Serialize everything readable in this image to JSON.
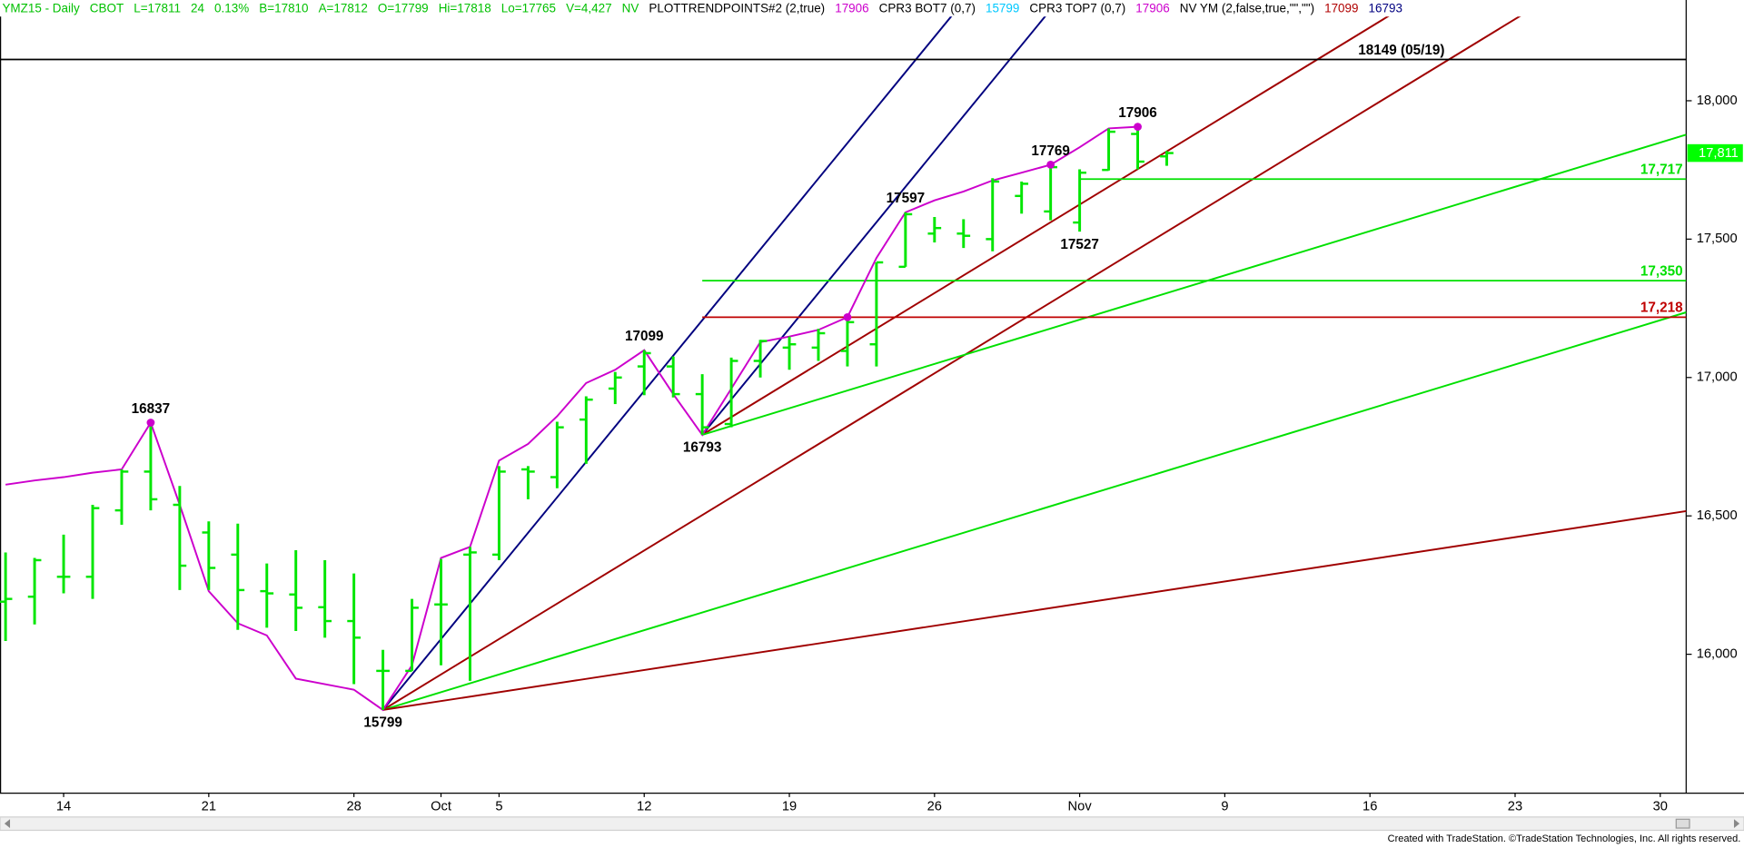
{
  "header": {
    "segments": [
      {
        "text": "YMZ15 - Daily",
        "color": "#00c000"
      },
      {
        "text": "CBOT",
        "color": "#00c000"
      },
      {
        "text": "L=17811",
        "color": "#00c000"
      },
      {
        "text": "24",
        "color": "#00c000"
      },
      {
        "text": "0.13%",
        "color": "#00c000"
      },
      {
        "text": "B=17810",
        "color": "#00c000"
      },
      {
        "text": "A=17812",
        "color": "#00c000"
      },
      {
        "text": "O=17799",
        "color": "#00c000"
      },
      {
        "text": "Hi=17818",
        "color": "#00c000"
      },
      {
        "text": "Lo=17765",
        "color": "#00c000"
      },
      {
        "text": "V=4,427",
        "color": "#00c000"
      },
      {
        "text": "NV",
        "color": "#00c000"
      },
      {
        "text": "PLOTTRENDPOINTS#2 (2,true)",
        "color": "#000000"
      },
      {
        "text": "17906",
        "color": "#cc00cc"
      },
      {
        "text": "CPR3 BOT7 (0,7)",
        "color": "#000000"
      },
      {
        "text": "15799",
        "color": "#00c8ff"
      },
      {
        "text": "CPR3 TOP7 (0,7)",
        "color": "#000000"
      },
      {
        "text": "17906",
        "color": "#cc00cc"
      },
      {
        "text": "NV YM (2,false,true,\"\",\"\")",
        "color": "#000000"
      },
      {
        "text": "17099",
        "color": "#b00000"
      },
      {
        "text": "16793",
        "color": "#000080"
      }
    ]
  },
  "chart_data": {
    "type": "ohlc",
    "color": "#00e600",
    "categories": [
      null,
      null,
      "14",
      null,
      null,
      null,
      null,
      "21",
      null,
      null,
      null,
      null,
      "28",
      null,
      null,
      "Oct",
      null,
      "5",
      null,
      null,
      null,
      null,
      "12",
      null,
      null,
      null,
      null,
      "19",
      null,
      null,
      null,
      null,
      "26",
      null,
      null,
      null,
      null,
      "Nov",
      null,
      null,
      null,
      null,
      "9",
      null,
      null,
      null,
      null,
      "16",
      null,
      null,
      null,
      null,
      "23",
      null,
      null,
      null,
      null,
      "30"
    ],
    "high": [
      16368,
      16348,
      16432,
      16540,
      16668,
      16837,
      16608,
      16480,
      16472,
      16328,
      16376,
      16340,
      16292,
      16016,
      16200,
      16344,
      16388,
      16680,
      16680,
      16840,
      16932,
      17020,
      17099,
      17076,
      17012,
      17072,
      17136,
      17148,
      17176,
      17228,
      17416,
      17597,
      17580,
      17572,
      17720,
      17708,
      17769,
      17752,
      17900,
      17906,
      17818,
      null,
      null,
      null,
      null,
      null,
      null,
      null,
      null,
      null,
      null,
      null,
      null,
      null,
      null,
      null,
      null,
      null
    ],
    "low": [
      16048,
      16108,
      16220,
      16200,
      16468,
      16520,
      16232,
      16232,
      16088,
      16096,
      16084,
      16060,
      15892,
      15799,
      15940,
      15960,
      15904,
      16340,
      16560,
      16600,
      16688,
      16904,
      16936,
      16928,
      16793,
      16820,
      17000,
      17028,
      17060,
      17040,
      17040,
      17400,
      17488,
      17468,
      17456,
      17592,
      17568,
      17527,
      17748,
      17752,
      17765,
      null,
      null,
      null,
      null,
      null,
      null,
      null,
      null,
      null,
      null,
      null,
      null,
      null,
      null,
      null,
      null,
      null
    ],
    "open": [
      16190,
      16208,
      16280,
      16280,
      16520,
      16660,
      16540,
      16440,
      16360,
      16228,
      16216,
      16170,
      16120,
      15940,
      15940,
      16180,
      16360,
      16360,
      16668,
      16640,
      16848,
      16960,
      17040,
      17040,
      16940,
      16832,
      17060,
      17108,
      17108,
      17096,
      17120,
      17400,
      17520,
      17520,
      17500,
      17656,
      17600,
      17560,
      17750,
      17880,
      17799,
      null,
      null,
      null,
      null,
      null,
      null,
      null,
      null,
      null,
      null,
      null,
      null,
      null,
      null,
      null,
      null,
      null
    ],
    "close": [
      16200,
      16340,
      16280,
      16528,
      16660,
      16560,
      16320,
      16312,
      16232,
      16220,
      16168,
      16120,
      16060,
      15940,
      16168,
      16180,
      16368,
      16660,
      16660,
      16820,
      16920,
      17000,
      17088,
      16940,
      16820,
      17060,
      17132,
      17120,
      17160,
      17200,
      17416,
      17590,
      17540,
      17512,
      17708,
      17700,
      17760,
      17740,
      17888,
      17780,
      17811,
      null,
      null,
      null,
      null,
      null,
      null,
      null,
      null,
      null,
      null,
      null,
      null,
      null,
      null,
      null,
      null,
      null
    ],
    "pivot_line": {
      "color": "#cc00cc",
      "values": [
        16613,
        16628,
        16640,
        16656,
        16668,
        16837,
        16540,
        16228,
        16112,
        16068,
        15912,
        15892,
        15872,
        15799,
        15960,
        16348,
        16388,
        16700,
        16760,
        16860,
        16980,
        17028,
        17099,
        16940,
        16793,
        16960,
        17128,
        17148,
        17172,
        17218,
        17432,
        17597,
        17640,
        17672,
        17712,
        17740,
        17769,
        17832,
        17900,
        17906,
        null,
        null,
        null,
        null,
        null,
        null,
        null,
        null,
        null,
        null,
        null,
        null,
        null,
        null,
        null,
        null,
        null,
        null
      ],
      "marks": [
        16837,
        17218,
        17769,
        17906
      ]
    },
    "annotations": [
      16837,
      15799,
      17099,
      16793,
      17597,
      17769,
      17527,
      17906
    ],
    "hlines": [
      {
        "value": 18149,
        "label": "18149 (05/19)",
        "color": "#000000"
      },
      {
        "value": 17717,
        "label": "17,717",
        "color": "#00e000"
      },
      {
        "value": 17350,
        "label": "17,350",
        "color": "#00e000"
      },
      {
        "value": 17218,
        "label": "17,218",
        "color": "#c00000"
      }
    ],
    "fans": [
      {
        "origin": 15799,
        "lines": [
          {
            "slope": 128,
            "color": "#00007f"
          },
          {
            "slope": 64,
            "color": "#a00000"
          },
          {
            "slope": 32,
            "color": "#00e000"
          },
          {
            "slope": 16,
            "color": "#a00000"
          }
        ]
      },
      {
        "origin": 16793,
        "lines": [
          {
            "slope": 128,
            "color": "#00007f"
          },
          {
            "slope": 64,
            "color": "#a00000"
          },
          {
            "slope": 32,
            "color": "#00e000"
          }
        ]
      }
    ],
    "last": {
      "value": 17811,
      "label": "17,811",
      "color": "#00ff00"
    },
    "ylim": [
      15500,
      18300
    ],
    "yticks": [
      {
        "value": 16000,
        "label": "16,000"
      },
      {
        "value": 16500,
        "label": "16,500"
      },
      {
        "value": 17000,
        "label": "17,000"
      },
      {
        "value": 17500,
        "label": "17,500"
      },
      {
        "value": 18000,
        "label": "18,000"
      }
    ]
  },
  "footer": "Created with TradeStation. ©TradeStation Technologies, Inc. All rights reserved."
}
